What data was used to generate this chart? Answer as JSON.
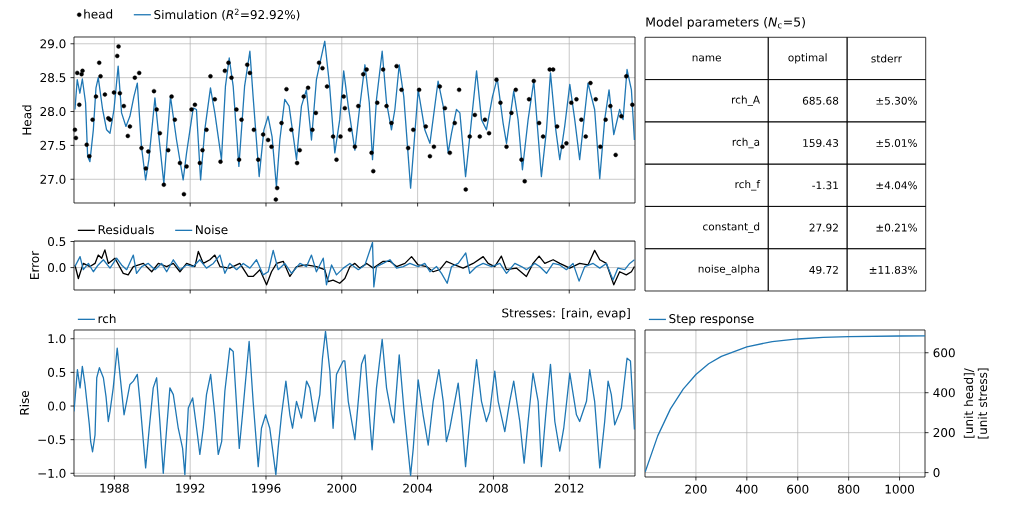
{
  "chart_data": [
    {
      "type": "line",
      "ylabel": "Head",
      "xlim": [
        1985.87,
        2015.47
      ],
      "xticks": [
        1988,
        1992,
        1996,
        2000,
        2004,
        2008,
        2012
      ],
      "ylim": [
        26.65,
        29.1
      ],
      "yticks": [
        {
          "value": 27,
          "label": "27.0"
        },
        27.5,
        {
          "value": 28,
          "label": "28.0"
        },
        28.5,
        {
          "value": 29,
          "label": "29.0"
        }
      ],
      "tick_labels": "y",
      "grid": true,
      "legend": "top left",
      "series": [
        {
          "name": "head",
          "type": "scatter",
          "marker": "circle",
          "color": "#000000",
          "x": [
            1985.92,
            1985.97,
            1986.04,
            1986.15,
            1986.27,
            1986.32,
            1986.54,
            1986.68,
            1986.85,
            1987.03,
            1987.2,
            1987.27,
            1987.5,
            1987.68,
            1987.77,
            1987.98,
            1988.15,
            1988.22,
            1988.29,
            1988.5,
            1988.71,
            1988.82,
            1989.08,
            1989.31,
            1989.43,
            1989.66,
            1989.79,
            1990.09,
            1990.23,
            1990.4,
            1990.61,
            1990.84,
            1991.02,
            1991.19,
            1991.46,
            1991.67,
            1991.81,
            1992.07,
            1992.25,
            1992.51,
            1992.65,
            1992.86,
            1993.07,
            1993.3,
            1993.6,
            1993.83,
            1994.02,
            1994.18,
            1994.44,
            1994.58,
            1994.71,
            1995.01,
            1995.15,
            1995.36,
            1995.59,
            1995.85,
            1996.11,
            1996.29,
            1996.52,
            1996.59,
            1996.82,
            1997.08,
            1997.34,
            1997.64,
            1997.78,
            1997.99,
            1998.22,
            1998.45,
            1998.63,
            1998.8,
            1998.98,
            1999.22,
            1999.54,
            1999.72,
            1999.93,
            2000.1,
            2000.16,
            2000.43,
            2000.69,
            2000.87,
            2001.13,
            2001.31,
            2001.57,
            2001.66,
            2001.87,
            2002.18,
            2002.36,
            2002.62,
            2002.89,
            2003.15,
            2003.5,
            2003.77,
            2004.08,
            2004.43,
            2004.65,
            2004.86,
            2005.17,
            2005.44,
            2005.7,
            2005.96,
            2006.19,
            2006.54,
            2006.75,
            2007.02,
            2007.28,
            2007.55,
            2007.77,
            2008.16,
            2008.37,
            2008.69,
            2008.95,
            2009.18,
            2009.48,
            2009.65,
            2009.88,
            2010.13,
            2010.41,
            2010.62,
            2010.97,
            2011.15,
            2011.36,
            2011.64,
            2011.85,
            2012.11,
            2012.38,
            2012.64,
            2012.87,
            2013.12,
            2013.4,
            2013.64,
            2013.92,
            2014.17,
            2014.45,
            2014.75,
            2015.01,
            2015.33
          ],
          "values": [
            27.73,
            27.61,
            28.57,
            28.1,
            28.55,
            28.6,
            27.51,
            27.34,
            27.88,
            28.22,
            28.72,
            28.52,
            28.25,
            27.9,
            27.88,
            28.28,
            28.82,
            28.96,
            28.27,
            28.08,
            27.64,
            27.78,
            28.5,
            28.57,
            27.46,
            27.16,
            27.41,
            28.3,
            28.03,
            27.68,
            26.92,
            27.43,
            28.22,
            27.88,
            27.24,
            26.78,
            27.19,
            28.03,
            28.1,
            27.24,
            27.43,
            27.73,
            28.52,
            28.18,
            27.26,
            28.6,
            28.72,
            28.5,
            28.03,
            27.29,
            27.88,
            28.69,
            28.57,
            27.73,
            27.29,
            27.66,
            27.58,
            27.48,
            26.7,
            26.87,
            27.83,
            28.33,
            27.73,
            27.24,
            27.43,
            28.22,
            28.35,
            27.73,
            27.98,
            28.72,
            28.64,
            28.37,
            27.63,
            27.29,
            27.63,
            28.22,
            28.05,
            27.73,
            27.48,
            28.08,
            28.55,
            28.62,
            27.39,
            27.12,
            28.13,
            28.62,
            28.08,
            27.83,
            28.67,
            28.32,
            27.46,
            27.73,
            28.32,
            27.78,
            27.34,
            27.48,
            28.37,
            28.05,
            27.39,
            27.83,
            28.32,
            26.85,
            27.63,
            27.95,
            27.63,
            27.88,
            27.68,
            28.47,
            28.13,
            27.48,
            27.98,
            28.32,
            27.29,
            26.97,
            28.18,
            28.45,
            27.83,
            27.63,
            28.62,
            28.62,
            27.78,
            27.48,
            27.53,
            28.13,
            28.18,
            27.88,
            27.63,
            28.42,
            28.18,
            27.48,
            27.88,
            28.08,
            27.36,
            27.93,
            28.52,
            28.1
          ]
        },
        {
          "name": "Simulation (*R*$^{2}$=92.92%)",
          "type": "line",
          "color": "#1f77b4",
          "x": [
            1985.92,
            1986.04,
            1986.18,
            1986.31,
            1986.48,
            1986.59,
            1986.71,
            1986.89,
            1987.03,
            1987.15,
            1987.38,
            1987.59,
            1987.77,
            1987.98,
            1988.2,
            1988.38,
            1988.61,
            1988.82,
            1989.03,
            1989.21,
            1989.43,
            1989.65,
            1989.82,
            1990.14,
            1990.31,
            1990.61,
            1990.96,
            1991.28,
            1991.63,
            1991.81,
            1992.16,
            1992.33,
            1992.55,
            1992.77,
            1993.07,
            1993.3,
            1993.65,
            1993.86,
            1994.06,
            1994.27,
            1994.57,
            1994.87,
            1995.15,
            1995.32,
            1995.64,
            1995.89,
            1996.11,
            1996.32,
            1996.55,
            1996.73,
            1996.99,
            1997.22,
            1997.61,
            1997.87,
            1998.13,
            1998.4,
            1998.66,
            1998.89,
            1999.1,
            1999.36,
            1999.63,
            1999.89,
            2000.1,
            2000.34,
            2000.69,
            2000.95,
            2001.22,
            2001.45,
            2001.62,
            2001.83,
            2002.13,
            2002.36,
            2002.62,
            2002.8,
            2003.03,
            2003.27,
            2003.63,
            2004.03,
            2004.38,
            2004.65,
            2005.08,
            2005.35,
            2005.61,
            2005.79,
            2006.05,
            2006.23,
            2006.53,
            2006.79,
            2007.11,
            2007.37,
            2007.63,
            2007.95,
            2008.2,
            2008.51,
            2008.69,
            2009.07,
            2009.3,
            2009.53,
            2009.83,
            2010.13,
            2010.53,
            2010.8,
            2011.01,
            2011.29,
            2011.5,
            2011.76,
            2012.03,
            2012.29,
            2012.55,
            2012.99,
            2013.34,
            2013.61,
            2013.87,
            2014.1,
            2014.35,
            2014.66,
            2014.84,
            2015.05,
            2015.28,
            2015.44
          ],
          "values": [
            28.03,
            28.47,
            28.27,
            28.48,
            28.13,
            27.34,
            27.26,
            27.73,
            28.35,
            28.5,
            28.03,
            27.73,
            27.68,
            28.03,
            28.67,
            27.98,
            27.78,
            27.93,
            28.22,
            28.42,
            27.48,
            26.99,
            27.29,
            28.2,
            27.73,
            26.94,
            28.22,
            27.58,
            26.99,
            27.39,
            28.05,
            28.03,
            26.99,
            27.73,
            28.35,
            27.98,
            27.29,
            28.37,
            28.79,
            28.37,
            27.19,
            28.37,
            28.89,
            28.22,
            27.04,
            27.73,
            27.93,
            27.63,
            26.89,
            27.58,
            28.18,
            28.08,
            27.29,
            28.08,
            28.32,
            27.58,
            28.47,
            28.77,
            29.04,
            28.37,
            27.39,
            27.88,
            28.6,
            28.08,
            27.43,
            28.08,
            28.69,
            28.13,
            27.29,
            28.18,
            28.89,
            28.13,
            27.73,
            28.03,
            28.69,
            28.22,
            26.87,
            28.32,
            27.73,
            27.53,
            28.45,
            28.08,
            27.39,
            27.68,
            28.03,
            27.98,
            27.04,
            27.73,
            28.6,
            27.88,
            27.73,
            28.22,
            28.49,
            27.83,
            27.53,
            28.3,
            27.88,
            27.14,
            27.88,
            28.45,
            27.04,
            27.73,
            28.57,
            27.73,
            27.29,
            27.78,
            28.4,
            27.88,
            27.29,
            28.42,
            28.03,
            27.01,
            27.88,
            28.32,
            27.66,
            28.03,
            27.88,
            28.62,
            28.32,
            27.58
          ]
        }
      ]
    },
    {
      "type": "other",
      "title": "Model parameters (*N*$_{c}$=5)",
      "annotations": [
        "name",
        "optimal",
        "stderr",
        "rch_A",
        "685.68",
        "±5.30%",
        "rch_a",
        "159.43",
        "±5.01%",
        "rch_f",
        "-1.31",
        "±4.04%",
        "constant_d",
        "27.92",
        "±0.21%",
        "noise_alpha",
        "49.72",
        "±11.83%"
      ]
    },
    {
      "type": "line",
      "ylabel": "Error",
      "xlim": [
        1985.87,
        2015.47
      ],
      "xticks": [
        1988,
        1992,
        1996,
        2000,
        2004,
        2008,
        2012
      ],
      "ylim": [
        -0.43,
        0.51
      ],
      "yticks": [
        {
          "value": 0,
          "label": "0.0"
        },
        0.5
      ],
      "tick_labels": "y",
      "grid": true,
      "legend": "top left",
      "series": [
        {
          "name": "Residuals",
          "color": "#000000",
          "x": [
            1985.92,
            1986.1,
            1986.36,
            1986.71,
            1986.98,
            1987.15,
            1987.33,
            1987.5,
            1987.68,
            1988.03,
            1988.47,
            1988.73,
            1989.0,
            1989.53,
            1989.97,
            1990.32,
            1990.76,
            1991.11,
            1991.46,
            1991.81,
            1992.25,
            1992.43,
            1992.69,
            1993.04,
            1993.3,
            1993.57,
            1994.09,
            1994.62,
            1995.06,
            1995.32,
            1995.68,
            1996.03,
            1996.29,
            1996.56,
            1996.91,
            1997.26,
            1997.61,
            1998.14,
            1998.66,
            1999.1,
            1999.28,
            1999.54,
            1999.89,
            2000.16,
            2000.43,
            2000.69,
            2000.95,
            2001.31,
            2001.66,
            2002.18,
            2002.54,
            2002.89,
            2003.33,
            2003.68,
            2004.03,
            2004.47,
            2004.82,
            2005.17,
            2005.52,
            2005.96,
            2006.4,
            2006.93,
            2007.46,
            2007.72,
            2008.07,
            2008.42,
            2008.69,
            2009.21,
            2009.74,
            2010.09,
            2010.41,
            2010.71,
            2011.15,
            2011.5,
            2012.03,
            2012.55,
            2012.99,
            2013.34,
            2013.61,
            2013.96,
            2014.35,
            2014.66,
            2015.01,
            2015.28,
            2015.44
          ],
          "values": [
            0.05,
            -0.21,
            0.08,
            0.02,
            0.08,
            0.24,
            0.18,
            0.34,
            0.08,
            0.18,
            -0.11,
            -0.14,
            0.02,
            0.08,
            -0.08,
            0.08,
            0.02,
            0.08,
            -0.08,
            0.08,
            0.02,
            0.31,
            0.08,
            0.15,
            0.24,
            0.02,
            -0.01,
            0.08,
            -0.17,
            -0.17,
            -0.04,
            -0.33,
            -0.08,
            0.08,
            0.12,
            -0.17,
            0.02,
            0.05,
            0.02,
            -0.04,
            -0.27,
            -0.24,
            -0.3,
            -0.21,
            0.02,
            0.08,
            -0.01,
            0.08,
            -0.01,
            0.12,
            0.12,
            0.02,
            0.08,
            0.21,
            0.05,
            0.02,
            -0.08,
            -0.04,
            0.12,
            0.05,
            -0.01,
            0.08,
            0.21,
            0.08,
            0.02,
            0.22,
            -0.04,
            -0.01,
            -0.17,
            0.08,
            0.22,
            0.08,
            0.15,
            0.08,
            -0.01,
            0.08,
            0.05,
            0.33,
            0.15,
            0.08,
            -0.33,
            -0.08,
            -0.14,
            -0.08,
            0.02
          ]
        },
        {
          "name": "Noise",
          "color": "#1f77b4",
          "x": [
            1985.92,
            1986.19,
            1986.36,
            1986.63,
            1986.89,
            1987.15,
            1987.42,
            1987.77,
            1988.12,
            1988.38,
            1988.65,
            1989.0,
            1989.17,
            1989.44,
            1989.79,
            1990.14,
            1990.49,
            1990.76,
            1991.11,
            1991.46,
            1991.81,
            1992.16,
            1992.51,
            1992.86,
            1993.22,
            1993.57,
            1993.83,
            1994.09,
            1994.45,
            1994.8,
            1995.15,
            1995.5,
            1995.85,
            1996.12,
            1996.38,
            1996.64,
            1996.99,
            1997.35,
            1997.79,
            1998.14,
            1998.4,
            1998.66,
            1999.02,
            1999.19,
            1999.46,
            1999.72,
            2000.08,
            2000.43,
            2000.87,
            2001.22,
            2001.62,
            2001.69,
            2001.83,
            2002.18,
            2002.54,
            2002.89,
            2003.24,
            2003.59,
            2004.03,
            2004.38,
            2004.65,
            2005.0,
            2005.26,
            2005.56,
            2005.79,
            2006.14,
            2006.54,
            2006.75,
            2007.11,
            2007.46,
            2007.9,
            2008.34,
            2008.69,
            2009.13,
            2009.48,
            2009.74,
            2010.18,
            2010.44,
            2010.8,
            2011.15,
            2011.5,
            2011.85,
            2012.2,
            2012.52,
            2012.82,
            2013.26,
            2013.61,
            2013.96,
            2014.31,
            2014.57,
            2014.93,
            2015.19,
            2015.44
          ],
          "values": [
            0.02,
            0.21,
            -0.04,
            0.08,
            -0.08,
            0.05,
            0.15,
            -0.01,
            0.18,
            0.05,
            -0.04,
            0.24,
            -0.11,
            0.02,
            0.08,
            -0.04,
            0.08,
            -0.08,
            0.15,
            -0.04,
            0.05,
            0.02,
            0.15,
            -0.01,
            0.08,
            0.24,
            -0.11,
            0.08,
            -0.04,
            0.08,
            -0.01,
            0.15,
            -0.14,
            -0.08,
            0.33,
            -0.04,
            0.08,
            -0.11,
            0.08,
            0.02,
            0.24,
            -0.08,
            0.18,
            -0.33,
            0.05,
            -0.14,
            -0.01,
            0.08,
            -0.04,
            0.05,
            0.48,
            -0.37,
            0.02,
            0.08,
            0.15,
            -0.01,
            0.02,
            0.08,
            0.02,
            0.08,
            -0.08,
            0.02,
            -0.11,
            -0.3,
            0.02,
            0.08,
            0.28,
            -0.11,
            0.02,
            0.08,
            0.02,
            0.08,
            -0.11,
            0.08,
            0.02,
            -0.04,
            0.08,
            0.02,
            -0.11,
            0.08,
            0.05,
            -0.04,
            0.08,
            -0.26,
            0.02,
            0.08,
            -0.01,
            0.08,
            -0.24,
            -0.01,
            -0.04,
            0.08,
            0.15
          ]
        }
      ]
    },
    {
      "type": "line",
      "title": "Stresses: [rain, evap]",
      "ylabel": "Rise",
      "xlim": [
        1985.87,
        2015.47
      ],
      "xticks": [
        1988,
        1992,
        1996,
        2000,
        2004,
        2008,
        2012
      ],
      "ylim": [
        -1.04,
        1.13
      ],
      "yticks": [
        {
          "value": -1.0,
          "label": "−1.0"
        },
        {
          "value": -0.5,
          "label": "−0.5"
        },
        {
          "value": 0,
          "label": "0.0"
        },
        0.5,
        {
          "value": 1,
          "label": "1.0"
        }
      ],
      "grid": true,
      "legend": "top left",
      "series": [
        {
          "name": "rch",
          "color": "#1f77b4",
          "x": [
            1985.87,
            1986.05,
            1986.19,
            1986.31,
            1986.45,
            1986.68,
            1986.75,
            1986.85,
            1986.98,
            1987.07,
            1987.21,
            1987.42,
            1987.56,
            1987.68,
            1987.77,
            1987.94,
            1988.15,
            1988.33,
            1988.51,
            1988.65,
            1988.82,
            1989.0,
            1989.21,
            1989.35,
            1989.53,
            1989.65,
            1989.84,
            1990.05,
            1990.23,
            1990.4,
            1990.58,
            1990.76,
            1990.93,
            1991.11,
            1991.37,
            1991.6,
            1991.72,
            1991.9,
            1992.13,
            1992.34,
            1992.51,
            1992.69,
            1992.86,
            1993.08,
            1993.3,
            1993.48,
            1993.66,
            1993.83,
            1994.09,
            1994.27,
            1994.59,
            1994.76,
            1995.11,
            1995.32,
            1995.59,
            1995.76,
            1995.98,
            1996.2,
            1996.52,
            1996.64,
            1996.82,
            1997.05,
            1997.26,
            1997.4,
            1997.61,
            1997.87,
            1998.14,
            1998.31,
            1998.58,
            1998.84,
            1998.98,
            1999.14,
            1999.37,
            1999.54,
            1999.72,
            2000.07,
            2000.16,
            2000.34,
            2000.69,
            2001.04,
            2001.22,
            2001.48,
            2001.6,
            2001.83,
            2002.13,
            2002.36,
            2002.62,
            2002.75,
            2003.03,
            2003.27,
            2003.63,
            2003.77,
            2004.03,
            2004.29,
            2004.56,
            2004.82,
            2005.12,
            2005.35,
            2005.52,
            2005.7,
            2006.14,
            2006.31,
            2006.53,
            2006.75,
            2007.11,
            2007.37,
            2007.63,
            2007.81,
            2008.07,
            2008.25,
            2008.6,
            2008.86,
            2009.07,
            2009.39,
            2009.62,
            2009.83,
            2010.09,
            2010.36,
            2010.53,
            2010.76,
            2011.01,
            2011.24,
            2011.5,
            2011.71,
            2012.03,
            2012.38,
            2012.55,
            2012.91,
            2013.08,
            2013.34,
            2013.61,
            2013.87,
            2014.05,
            2014.22,
            2014.4,
            2014.75,
            2015.05,
            2015.23,
            2015.33,
            2015.44
          ],
          "values": [
            -0.08,
            0.54,
            0.27,
            0.59,
            0.32,
            -0.28,
            -0.53,
            -0.68,
            -0.43,
            0.42,
            0.57,
            0.42,
            0.14,
            -0.23,
            -0.08,
            0.27,
            0.86,
            0.37,
            -0.13,
            0.07,
            0.32,
            0.37,
            0.47,
            0.07,
            -0.53,
            -0.92,
            -0.33,
            0.27,
            0.42,
            -0.23,
            -1.0,
            -0.33,
            0.27,
            0.17,
            -0.33,
            -0.63,
            -1.02,
            -0.03,
            0.12,
            -0.33,
            -0.72,
            -0.33,
            0.17,
            0.47,
            -0.13,
            -0.72,
            -0.53,
            0.22,
            0.86,
            0.81,
            -0.63,
            -0.13,
            0.96,
            0.07,
            -0.9,
            -0.33,
            -0.13,
            -0.33,
            -1.02,
            -0.63,
            -0.13,
            0.37,
            -0.13,
            -0.33,
            0.07,
            -0.18,
            0.37,
            0.27,
            -0.23,
            0.17,
            0.71,
            1.11,
            0.52,
            -0.33,
            0.47,
            0.67,
            0.67,
            0.07,
            -0.5,
            0.62,
            0.76,
            -0.23,
            -0.65,
            0.27,
            0.99,
            0.27,
            -0.13,
            -0.25,
            0.76,
            -0.03,
            -1.03,
            -0.63,
            0.39,
            -0.13,
            -0.58,
            0.07,
            0.54,
            0.07,
            -0.53,
            -0.33,
            0.34,
            -0.13,
            -0.9,
            -0.23,
            0.69,
            0.07,
            -0.23,
            -0.08,
            0.52,
            0.07,
            -0.38,
            0.07,
            0.37,
            -0.23,
            -0.85,
            -0.23,
            0.49,
            0.07,
            -0.9,
            -0.13,
            0.62,
            -0.23,
            -0.67,
            -0.33,
            0.49,
            -0.13,
            -0.23,
            0.07,
            0.54,
            0.07,
            -0.92,
            -0.23,
            0.37,
            0.17,
            -0.28,
            -0.03,
            0.71,
            0.67,
            0.17,
            -0.35
          ]
        }
      ]
    },
    {
      "type": "line",
      "ylabel": "[unit head]/ [unit stress]",
      "xlim": [
        0,
        1100
      ],
      "xticks": [
        200,
        400,
        600,
        800,
        1000
      ],
      "ylim": [
        -22,
        714
      ],
      "yticks": [
        0,
        200,
        400,
        600
      ],
      "grid": true,
      "legend": "top left",
      "series": [
        {
          "name": "Step response",
          "color": "#1f77b4",
          "x": [
            1,
            50,
            100,
            150,
            200,
            250,
            300,
            400,
            500,
            600,
            700,
            800,
            1000,
            1100
          ],
          "values": [
            4,
            184,
            319,
            418,
            491,
            545,
            582,
            630,
            656,
            669,
            677,
            681,
            684,
            685
          ]
        }
      ]
    }
  ]
}
